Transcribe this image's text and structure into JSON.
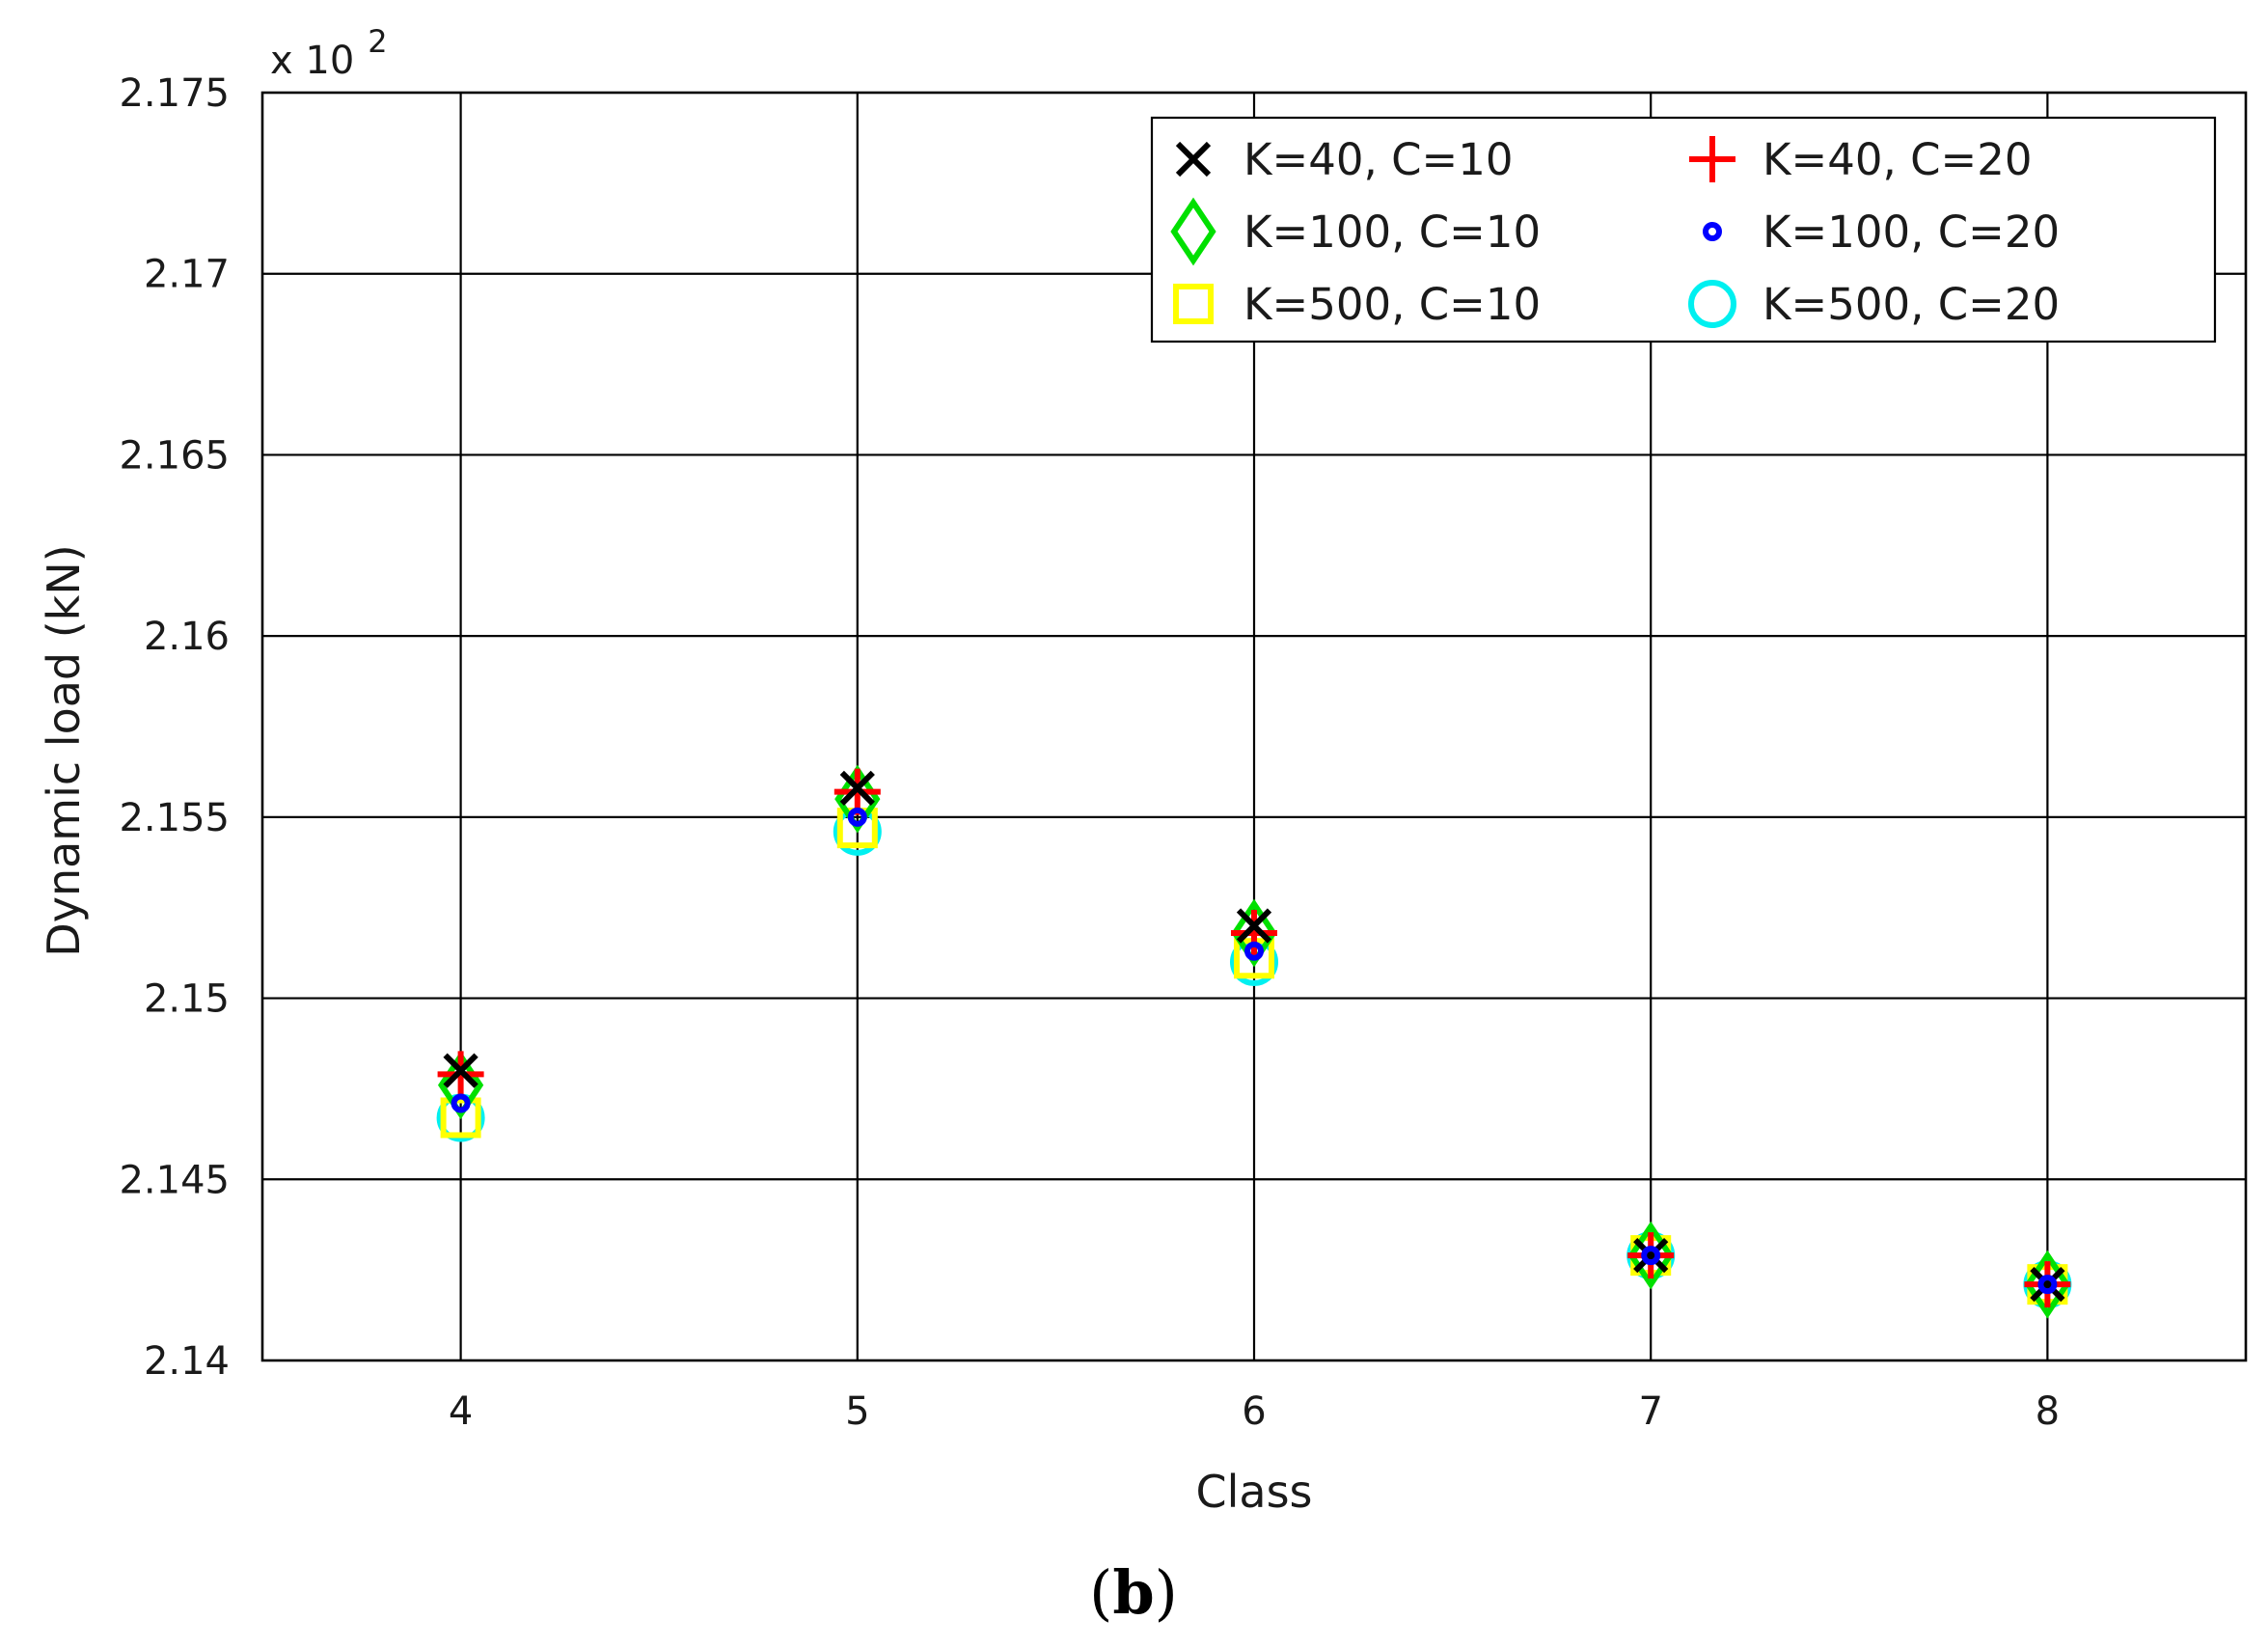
{
  "chart_data": {
    "type": "scatter",
    "xlabel": "Class",
    "ylabel": "Dynamic load (kN)",
    "y_multiplier": "x 10",
    "y_multiplier_exponent": "2",
    "categories": [
      "4",
      "5",
      "6",
      "7",
      "8"
    ],
    "x": [
      4,
      5,
      6,
      7,
      8
    ],
    "xlim": [
      3.5,
      8.5
    ],
    "ylim": [
      2.14,
      2.175
    ],
    "yticks": [
      "2.14",
      "2.145",
      "2.15",
      "2.155",
      "2.16",
      "2.165",
      "2.17",
      "2.175"
    ],
    "ytick_values": [
      2.14,
      2.145,
      2.15,
      2.155,
      2.16,
      2.165,
      2.17,
      2.175
    ],
    "grid": true,
    "legend_position": "top-right",
    "series": [
      {
        "name": "K=40, C=10",
        "marker": "x",
        "color": "#000000",
        "values": [
          2.148,
          2.1558,
          2.152,
          2.1429,
          2.1421
        ]
      },
      {
        "name": "K=40, C=20",
        "marker": "plus",
        "color": "#ff0000",
        "values": [
          2.1479,
          2.1557,
          2.1518,
          2.1429,
          2.1421
        ]
      },
      {
        "name": "K=100, C=10",
        "marker": "diamond",
        "color": "#00e000",
        "values": [
          2.1476,
          2.1555,
          2.1518,
          2.1429,
          2.1421
        ]
      },
      {
        "name": "K=100, C=20",
        "marker": "dot",
        "color": "#0000ff",
        "values": [
          2.1471,
          2.155,
          2.1513,
          2.1429,
          2.1421
        ]
      },
      {
        "name": "K=500, C=10",
        "marker": "square",
        "color": "#ffff00",
        "values": [
          2.1467,
          2.1547,
          2.1511,
          2.1429,
          2.1421
        ]
      },
      {
        "name": "K=500, C=20",
        "marker": "circle",
        "color": "#00f0f0",
        "values": [
          2.1467,
          2.1546,
          2.151,
          2.1429,
          2.1421
        ]
      }
    ],
    "panel_label_open": "(",
    "panel_label_letter": "b",
    "panel_label_close": ")"
  }
}
